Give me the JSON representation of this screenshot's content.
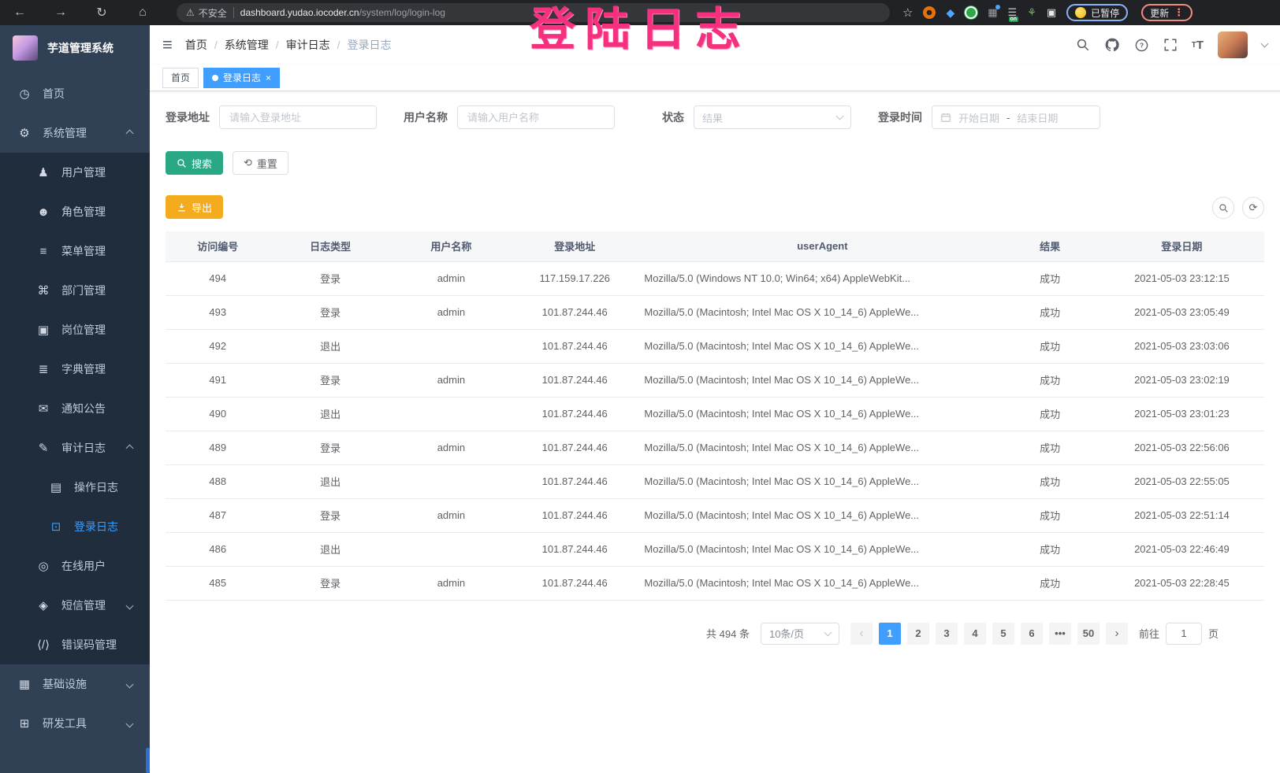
{
  "browser": {
    "security_label": "不安全",
    "url_host": "dashboard.yudao.iocoder.cn",
    "url_path": "/system/log/login-log",
    "paused_label": "已暂停",
    "update_label": "更新",
    "list_badge": "on"
  },
  "watermark": {
    "text": "登陆日志",
    "color": "#f5317f"
  },
  "sidebar": {
    "app_title": "芋道管理系统",
    "items": [
      {
        "name": "home",
        "label": "首页",
        "icon": "◷",
        "icon_name": "dashboard-icon",
        "level": 1
      },
      {
        "name": "system-management",
        "label": "系统管理",
        "icon": "⚙",
        "icon_name": "gear-icon",
        "level": 1,
        "arrow": "up"
      },
      {
        "name": "user-management",
        "label": "用户管理",
        "icon": "♟",
        "icon_name": "user-icon",
        "level": 2
      },
      {
        "name": "role-management",
        "label": "角色管理",
        "icon": "☻",
        "icon_name": "roles-icon",
        "level": 2
      },
      {
        "name": "menu-management",
        "label": "菜单管理",
        "icon": "≡",
        "icon_name": "menu-tree-icon",
        "level": 2
      },
      {
        "name": "department-management",
        "label": "部门管理",
        "icon": "⌘",
        "icon_name": "org-tree-icon",
        "level": 2
      },
      {
        "name": "post-management",
        "label": "岗位管理",
        "icon": "▣",
        "icon_name": "badge-icon",
        "level": 2
      },
      {
        "name": "dict-management",
        "label": "字典管理",
        "icon": "≣",
        "icon_name": "dictionary-icon",
        "level": 2
      },
      {
        "name": "notice-announcement",
        "label": "通知公告",
        "icon": "✉",
        "icon_name": "announcement-icon",
        "level": 2
      },
      {
        "name": "audit-log",
        "label": "审计日志",
        "icon": "✎",
        "icon_name": "audit-log-icon",
        "level": 2,
        "arrow": "up"
      },
      {
        "name": "operation-log",
        "label": "操作日志",
        "icon": "▤",
        "icon_name": "operation-log-icon",
        "level": 3
      },
      {
        "name": "login-log",
        "label": "登录日志",
        "icon": "⊡",
        "icon_name": "login-log-icon",
        "level": 3,
        "active": true
      },
      {
        "name": "online-users",
        "label": "在线用户",
        "icon": "◎",
        "icon_name": "online-users-icon",
        "level": 2
      },
      {
        "name": "sms-management",
        "label": "短信管理",
        "icon": "◈",
        "icon_name": "sms-shield-icon",
        "level": 2,
        "arrow": "down"
      },
      {
        "name": "error-code-management",
        "label": "错误码管理",
        "icon": "⟨/⟩",
        "icon_name": "code-icon",
        "level": 2
      },
      {
        "name": "infrastructure",
        "label": "基础设施",
        "icon": "▦",
        "icon_name": "infrastructure-icon",
        "level": 1,
        "arrow": "down"
      },
      {
        "name": "dev-tools",
        "label": "研发工具",
        "icon": "⊞",
        "icon_name": "dev-tools-icon",
        "level": 1,
        "arrow": "down"
      }
    ]
  },
  "header": {
    "breadcrumbs": [
      "首页",
      "系统管理",
      "审计日志",
      "登录日志"
    ]
  },
  "tags": [
    {
      "label": "首页",
      "active": false
    },
    {
      "label": "登录日志",
      "active": true
    }
  ],
  "filters": {
    "address_label": "登录地址",
    "address_placeholder": "请输入登录地址",
    "username_label": "用户名称",
    "username_placeholder": "请输入用户名称",
    "status_label": "状态",
    "status_placeholder": "结果",
    "time_label": "登录时间",
    "date_start_placeholder": "开始日期",
    "date_separator": "-",
    "date_end_placeholder": "结束日期",
    "search_label": "搜索",
    "reset_label": "重置"
  },
  "toolbar": {
    "export_label": "导出"
  },
  "table": {
    "columns": [
      "访问编号",
      "日志类型",
      "用户名称",
      "登录地址",
      "userAgent",
      "结果",
      "登录日期"
    ],
    "rows": [
      [
        "494",
        "登录",
        "admin",
        "117.159.17.226",
        "Mozilla/5.0 (Windows NT 10.0; Win64; x64) AppleWebKit...",
        "成功",
        "2021-05-03 23:12:15"
      ],
      [
        "493",
        "登录",
        "admin",
        "101.87.244.46",
        "Mozilla/5.0 (Macintosh; Intel Mac OS X 10_14_6) AppleWe...",
        "成功",
        "2021-05-03 23:05:49"
      ],
      [
        "492",
        "退出",
        "",
        "101.87.244.46",
        "Mozilla/5.0 (Macintosh; Intel Mac OS X 10_14_6) AppleWe...",
        "成功",
        "2021-05-03 23:03:06"
      ],
      [
        "491",
        "登录",
        "admin",
        "101.87.244.46",
        "Mozilla/5.0 (Macintosh; Intel Mac OS X 10_14_6) AppleWe...",
        "成功",
        "2021-05-03 23:02:19"
      ],
      [
        "490",
        "退出",
        "",
        "101.87.244.46",
        "Mozilla/5.0 (Macintosh; Intel Mac OS X 10_14_6) AppleWe...",
        "成功",
        "2021-05-03 23:01:23"
      ],
      [
        "489",
        "登录",
        "admin",
        "101.87.244.46",
        "Mozilla/5.0 (Macintosh; Intel Mac OS X 10_14_6) AppleWe...",
        "成功",
        "2021-05-03 22:56:06"
      ],
      [
        "488",
        "退出",
        "",
        "101.87.244.46",
        "Mozilla/5.0 (Macintosh; Intel Mac OS X 10_14_6) AppleWe...",
        "成功",
        "2021-05-03 22:55:05"
      ],
      [
        "487",
        "登录",
        "admin",
        "101.87.244.46",
        "Mozilla/5.0 (Macintosh; Intel Mac OS X 10_14_6) AppleWe...",
        "成功",
        "2021-05-03 22:51:14"
      ],
      [
        "486",
        "退出",
        "",
        "101.87.244.46",
        "Mozilla/5.0 (Macintosh; Intel Mac OS X 10_14_6) AppleWe...",
        "成功",
        "2021-05-03 22:46:49"
      ],
      [
        "485",
        "登录",
        "admin",
        "101.87.244.46",
        "Mozilla/5.0 (Macintosh; Intel Mac OS X 10_14_6) AppleWe...",
        "成功",
        "2021-05-03 22:28:45"
      ]
    ]
  },
  "pagination": {
    "total": "共 494 条",
    "page_size": "10条/页",
    "prev": "‹",
    "next": "›",
    "pages": [
      "1",
      "2",
      "3",
      "4",
      "5",
      "6",
      "•••",
      "50"
    ],
    "active_page": "1",
    "goto_label": "前往",
    "goto_value": "1",
    "goto_suffix": "页"
  },
  "colors": {
    "accent_blue": "#409eff",
    "search_teal": "#2aa886",
    "export_amber": "#f5ab1e",
    "watermark_pink": "#f5317f"
  }
}
